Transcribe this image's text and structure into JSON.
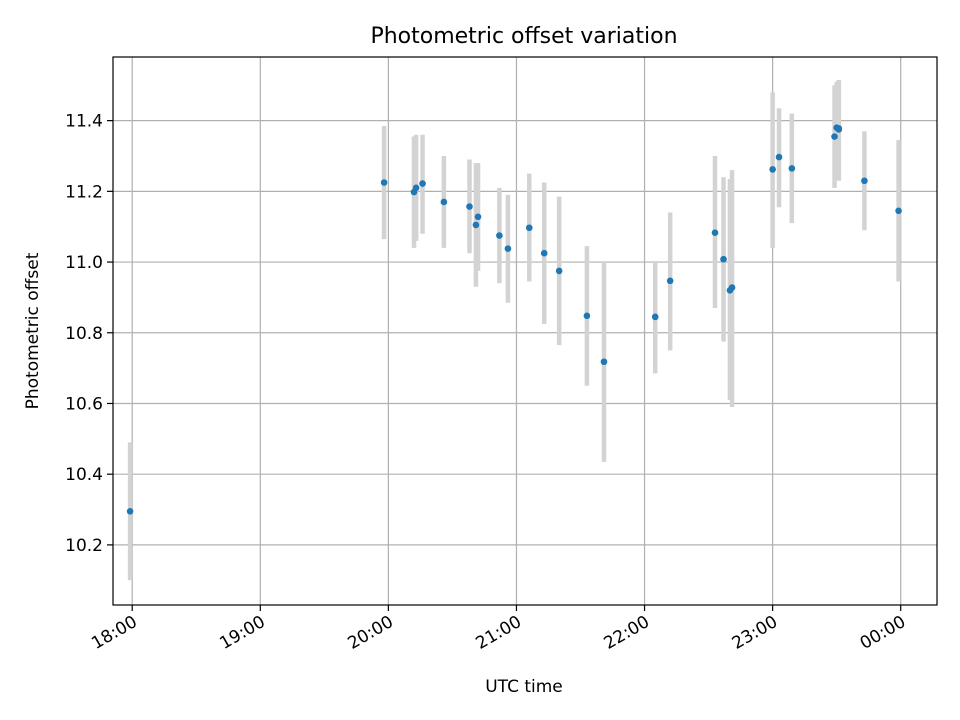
{
  "chart_data": {
    "type": "scatter",
    "title": "Photometric offset variation",
    "xlabel": "UTC time",
    "ylabel": "Photometric offset",
    "x_tick_labels": [
      "18:00",
      "19:00",
      "20:00",
      "21:00",
      "22:00",
      "23:00",
      "00:00"
    ],
    "y_tick_labels": [
      "10.2",
      "10.4",
      "10.6",
      "10.8",
      "11.0",
      "11.2",
      "11.4"
    ],
    "y_ticks": [
      10.2,
      10.4,
      10.6,
      10.8,
      11.0,
      11.2,
      11.4
    ],
    "ylim": [
      10.03,
      11.58
    ],
    "xlim": [
      "17:51",
      "00:17"
    ],
    "grid": true,
    "colors": {
      "point": "#1f77b4",
      "errorbar": "#d3d3d3",
      "grid": "#b0b0b0",
      "axes": "#000000"
    },
    "series": [
      {
        "points": [
          {
            "x": "17:59",
            "y": 10.295,
            "ylow": 10.1,
            "yhigh": 10.49
          },
          {
            "x": "19:58",
            "y": 11.225,
            "ylow": 11.065,
            "yhigh": 11.385
          },
          {
            "x": "20:12",
            "y": 11.198,
            "ylow": 11.04,
            "yhigh": 11.355
          },
          {
            "x": "20:13",
            "y": 11.21,
            "ylow": 11.06,
            "yhigh": 11.36
          },
          {
            "x": "20:16",
            "y": 11.222,
            "ylow": 11.08,
            "yhigh": 11.36
          },
          {
            "x": "20:26",
            "y": 11.17,
            "ylow": 11.04,
            "yhigh": 11.3
          },
          {
            "x": "20:38",
            "y": 11.157,
            "ylow": 11.025,
            "yhigh": 11.29
          },
          {
            "x": "20:41",
            "y": 11.105,
            "ylow": 10.93,
            "yhigh": 11.28
          },
          {
            "x": "20:42",
            "y": 11.128,
            "ylow": 10.975,
            "yhigh": 11.28
          },
          {
            "x": "20:52",
            "y": 11.075,
            "ylow": 10.94,
            "yhigh": 11.21
          },
          {
            "x": "20:56",
            "y": 11.038,
            "ylow": 10.885,
            "yhigh": 11.19
          },
          {
            "x": "21:06",
            "y": 11.097,
            "ylow": 10.945,
            "yhigh": 11.25
          },
          {
            "x": "21:13",
            "y": 11.025,
            "ylow": 10.825,
            "yhigh": 11.225
          },
          {
            "x": "21:20",
            "y": 10.975,
            "ylow": 10.765,
            "yhigh": 11.185
          },
          {
            "x": "21:33",
            "y": 10.848,
            "ylow": 10.65,
            "yhigh": 11.045
          },
          {
            "x": "21:41",
            "y": 10.718,
            "ylow": 10.435,
            "yhigh": 11.0
          },
          {
            "x": "22:05",
            "y": 10.845,
            "ylow": 10.685,
            "yhigh": 11.0
          },
          {
            "x": "22:12",
            "y": 10.947,
            "ylow": 10.75,
            "yhigh": 11.14
          },
          {
            "x": "22:33",
            "y": 11.083,
            "ylow": 10.87,
            "yhigh": 11.3
          },
          {
            "x": "22:37",
            "y": 11.008,
            "ylow": 10.775,
            "yhigh": 11.24
          },
          {
            "x": "22:40",
            "y": 10.92,
            "ylow": 10.61,
            "yhigh": 11.235
          },
          {
            "x": "22:41",
            "y": 10.928,
            "ylow": 10.59,
            "yhigh": 11.26
          },
          {
            "x": "23:00",
            "y": 11.262,
            "ylow": 11.04,
            "yhigh": 11.48
          },
          {
            "x": "23:03",
            "y": 11.297,
            "ylow": 11.155,
            "yhigh": 11.435
          },
          {
            "x": "23:09",
            "y": 11.265,
            "ylow": 11.11,
            "yhigh": 11.42
          },
          {
            "x": "23:29",
            "y": 11.355,
            "ylow": 11.21,
            "yhigh": 11.5
          },
          {
            "x": "23:30",
            "y": 11.38,
            "ylow": 11.245,
            "yhigh": 11.51
          },
          {
            "x": "23:31",
            "y": 11.375,
            "ylow": 11.23,
            "yhigh": 11.515
          },
          {
            "x": "23:31",
            "y": 11.378,
            "ylow": 11.24,
            "yhigh": 11.515
          },
          {
            "x": "23:43",
            "y": 11.23,
            "ylow": 11.09,
            "yhigh": 11.37
          },
          {
            "x": "23:59",
            "y": 11.145,
            "ylow": 10.945,
            "yhigh": 11.345
          }
        ]
      }
    ]
  }
}
